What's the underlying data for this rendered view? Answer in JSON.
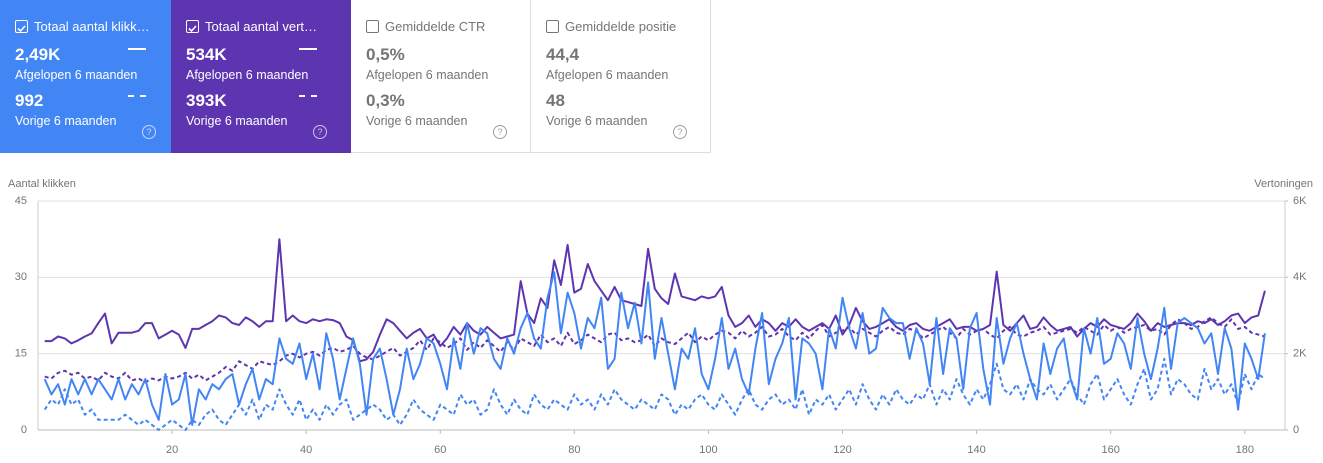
{
  "cards": [
    {
      "label": "Totaal aantal klikk…",
      "checked": true,
      "theme": "#4285f4",
      "current": {
        "value": "2,49K",
        "period": "Afgelopen 6 maanden"
      },
      "previous": {
        "value": "992",
        "period": "Vorige 6 maanden"
      }
    },
    {
      "label": "Totaal aantal vert…",
      "checked": true,
      "theme": "#5e35b1",
      "current": {
        "value": "534K",
        "period": "Afgelopen 6 maanden"
      },
      "previous": {
        "value": "393K",
        "period": "Vorige 6 maanden"
      }
    },
    {
      "label": "Gemiddelde CTR",
      "checked": false,
      "current": {
        "value": "0,5%",
        "period": "Afgelopen 6 maanden"
      },
      "previous": {
        "value": "0,3%",
        "period": "Vorige 6 maanden"
      }
    },
    {
      "label": "Gemiddelde positie",
      "checked": false,
      "current": {
        "value": "44,4",
        "period": "Afgelopen 6 maanden"
      },
      "previous": {
        "value": "48",
        "period": "Vorige 6 maanden"
      }
    }
  ],
  "chart_data": {
    "type": "line",
    "ylabel": "Aantal klikken",
    "y2label": "Vertoningen",
    "grid": true,
    "xlim": [
      0,
      186
    ],
    "xticks": [
      20,
      40,
      60,
      80,
      100,
      120,
      140,
      160,
      180
    ],
    "ylim": [
      0,
      45
    ],
    "yticks": [
      0,
      15,
      30,
      45
    ],
    "y2lim": [
      0,
      6000
    ],
    "y2ticks": [
      0,
      {
        "value": 2000,
        "label": "2K"
      },
      {
        "value": 4000,
        "label": "4K"
      },
      {
        "value": 6000,
        "label": "6K"
      }
    ],
    "x": [
      1,
      2,
      3,
      4,
      5,
      6,
      7,
      8,
      9,
      10,
      11,
      12,
      13,
      14,
      15,
      16,
      17,
      18,
      19,
      20,
      21,
      22,
      23,
      24,
      25,
      26,
      27,
      28,
      29,
      30,
      31,
      32,
      33,
      34,
      35,
      36,
      37,
      38,
      39,
      40,
      41,
      42,
      43,
      44,
      45,
      46,
      47,
      48,
      49,
      50,
      51,
      52,
      53,
      54,
      55,
      56,
      57,
      58,
      59,
      60,
      61,
      62,
      63,
      64,
      65,
      66,
      67,
      68,
      69,
      70,
      71,
      72,
      73,
      74,
      75,
      76,
      77,
      78,
      79,
      80,
      81,
      82,
      83,
      84,
      85,
      86,
      87,
      88,
      89,
      90,
      91,
      92,
      93,
      94,
      95,
      96,
      97,
      98,
      99,
      100,
      101,
      102,
      103,
      104,
      105,
      106,
      107,
      108,
      109,
      110,
      111,
      112,
      113,
      114,
      115,
      116,
      117,
      118,
      119,
      120,
      121,
      122,
      123,
      124,
      125,
      126,
      127,
      128,
      129,
      130,
      131,
      132,
      133,
      134,
      135,
      136,
      137,
      138,
      139,
      140,
      141,
      142,
      143,
      144,
      145,
      146,
      147,
      148,
      149,
      150,
      151,
      152,
      153,
      154,
      155,
      156,
      157,
      158,
      159,
      160,
      161,
      162,
      163,
      164,
      165,
      166,
      167,
      168,
      169,
      170,
      171,
      172,
      173,
      174,
      175,
      176,
      177,
      178,
      179,
      180,
      181,
      182,
      183
    ],
    "series": [
      {
        "color": "#5e35b1",
        "axis": "y2",
        "dashed": false,
        "values": [
          2330,
          2330,
          2450,
          2400,
          2270,
          2350,
          2450,
          2530,
          2800,
          3050,
          2270,
          2550,
          2550,
          2550,
          2600,
          2800,
          2800,
          2400,
          2500,
          2600,
          2500,
          2150,
          2650,
          2650,
          2750,
          2850,
          3000,
          2950,
          2800,
          2750,
          2950,
          2850,
          2700,
          2850,
          2850,
          5000,
          2850,
          3000,
          2850,
          2800,
          2900,
          2850,
          2900,
          2880,
          2800,
          2450,
          2350,
          1800,
          1850,
          2050,
          2500,
          2900,
          2800,
          2600,
          2400,
          2550,
          2650,
          2400,
          2500,
          2200,
          2400,
          2700,
          2500,
          2800,
          2600,
          2500,
          2700,
          2550,
          2400,
          2450,
          2500,
          3900,
          3050,
          2800,
          3450,
          3200,
          4450,
          3800,
          4850,
          3600,
          3700,
          4350,
          3900,
          3650,
          3400,
          3750,
          3400,
          3350,
          3300,
          3250,
          4750,
          3700,
          3450,
          3300,
          4100,
          3500,
          3450,
          3400,
          3500,
          3450,
          3500,
          3750,
          3000,
          2700,
          2800,
          3000,
          2700,
          2900,
          2800,
          2600,
          2800,
          2700,
          2900,
          2700,
          2600,
          2700,
          2800,
          2650,
          3000,
          2500,
          2750,
          3200,
          2850,
          2650,
          2700,
          2800,
          2900,
          2700,
          2600,
          2750,
          2800,
          2650,
          2600,
          2700,
          2800,
          2900,
          2650,
          2700,
          2700,
          2600,
          2650,
          2750,
          4150,
          2750,
          2600,
          2800,
          3000,
          2650,
          2700,
          2950,
          2750,
          2600,
          2650,
          2700,
          2450,
          2650,
          2800,
          2700,
          2900,
          2750,
          2700,
          2650,
          2800,
          3050,
          2850,
          2600,
          2800,
          2700,
          2750,
          2800,
          2800,
          2750,
          2850,
          2800,
          2900,
          2750,
          2850,
          3000,
          3050,
          2800,
          2950,
          3000,
          3650
        ]
      },
      {
        "color": "#5e35b1",
        "axis": "y2",
        "dashed": true,
        "values": [
          1400,
          1350,
          1500,
          1550,
          1450,
          1500,
          1350,
          1400,
          1300,
          1500,
          1400,
          1350,
          1500,
          1300,
          1350,
          1250,
          1350,
          1300,
          1400,
          1350,
          1400,
          1500,
          1350,
          1450,
          1300,
          1400,
          1500,
          1650,
          1550,
          1800,
          1700,
          1600,
          1800,
          1750,
          1700,
          1800,
          1950,
          2000,
          1900,
          2000,
          2050,
          1950,
          2100,
          2150,
          2050,
          2100,
          2200,
          2000,
          1900,
          1850,
          1950,
          2050,
          2150,
          1950,
          2050,
          2150,
          2350,
          2100,
          2400,
          2300,
          2150,
          2250,
          2400,
          2100,
          2300,
          2150,
          2350,
          2200,
          2050,
          2300,
          2100,
          2400,
          2300,
          2200,
          2500,
          2300,
          2400,
          2200,
          2550,
          2250,
          2350,
          2500,
          2400,
          2300,
          2500,
          2550,
          2350,
          2400,
          2300,
          2350,
          2500,
          2200,
          2400,
          2300,
          2250,
          2400,
          2550,
          2300,
          2450,
          2350,
          2500,
          2600,
          2550,
          2400,
          2600,
          2450,
          2550,
          2700,
          2450,
          2500,
          2650,
          2450,
          2350,
          2550,
          2400,
          2600,
          2750,
          2450,
          2550,
          2600,
          2700,
          2500,
          2650,
          2550,
          2450,
          2600,
          2700,
          2550,
          2500,
          2650,
          2600,
          2400,
          2500,
          2600,
          2700,
          2550,
          2400,
          2650,
          2500,
          2600,
          2650,
          2500,
          2400,
          2600,
          2700,
          2500,
          2450,
          2550,
          2600,
          2700,
          2500,
          2550,
          2600,
          2650,
          2550,
          2700,
          2600,
          2500,
          2750,
          2600,
          2700,
          2550,
          2650,
          2700,
          2750,
          2600,
          2650,
          2500,
          2750,
          2900,
          2800,
          2650,
          2700,
          2850,
          2950,
          2800,
          2700,
          2900,
          2650,
          2700,
          2550,
          2500,
          2450
        ]
      },
      {
        "color": "#4285f4",
        "axis": "y",
        "dashed": false,
        "values": [
          10,
          7,
          9,
          5,
          10,
          7,
          10,
          7,
          10,
          8,
          6,
          10,
          6,
          9,
          7,
          10,
          5,
          2,
          11,
          5,
          6,
          11,
          1,
          8,
          6,
          9,
          8,
          10,
          11,
          5,
          9,
          12,
          6,
          10,
          9,
          18,
          14,
          13,
          17,
          10,
          15,
          8,
          19,
          14,
          6,
          12,
          18,
          13,
          3,
          14,
          16,
          10,
          3,
          8,
          16,
          10,
          13,
          18,
          17,
          13,
          8,
          18,
          12,
          21,
          15,
          20,
          19,
          14,
          12,
          18,
          15,
          20,
          23,
          18,
          16,
          26,
          31,
          19,
          27,
          23,
          16,
          22,
          20,
          26,
          12,
          14,
          27,
          20,
          25,
          17,
          29,
          14,
          22,
          15,
          8,
          16,
          14,
          20,
          11,
          8,
          14,
          22,
          12,
          16,
          10,
          7,
          16,
          23,
          9,
          14,
          17,
          22,
          6,
          18,
          17,
          15,
          8,
          20,
          16,
          26,
          20,
          16,
          23,
          15,
          16,
          24,
          22,
          21,
          21,
          14,
          20,
          17,
          9,
          22,
          11,
          20,
          18,
          8,
          20,
          23,
          12,
          5,
          22,
          13,
          18,
          21,
          15,
          10,
          6,
          17,
          11,
          16,
          18,
          10,
          6,
          20,
          15,
          22,
          13,
          14,
          19,
          17,
          12,
          22,
          15,
          10,
          16,
          24,
          12,
          21,
          22,
          21,
          20,
          17,
          19,
          11,
          20,
          16,
          4,
          17,
          14,
          10,
          19
        ]
      },
      {
        "color": "#4285f4",
        "axis": "y",
        "dashed": true,
        "values": [
          4,
          6,
          5,
          8,
          5,
          6,
          3,
          4,
          2,
          2,
          2,
          2,
          3,
          2,
          1,
          2,
          1,
          0,
          1,
          2,
          1,
          0,
          2,
          1,
          3,
          4,
          2,
          1,
          3,
          5,
          3,
          6,
          2,
          5,
          4,
          8,
          5,
          3,
          6,
          2,
          4,
          2,
          5,
          3,
          5,
          6,
          2,
          3,
          4,
          5,
          4,
          2,
          3,
          1,
          3,
          6,
          4,
          3,
          2,
          5,
          4,
          3,
          7,
          5,
          6,
          3,
          4,
          8,
          5,
          3,
          6,
          4,
          3,
          7,
          5,
          4,
          6,
          5,
          4,
          7,
          5,
          6,
          4,
          7,
          5,
          8,
          6,
          5,
          4,
          6,
          5,
          4,
          7,
          6,
          3,
          5,
          4,
          6,
          7,
          5,
          4,
          7,
          5,
          3,
          6,
          8,
          5,
          4,
          6,
          7,
          5,
          6,
          4,
          8,
          3,
          6,
          5,
          7,
          4,
          6,
          8,
          5,
          9,
          6,
          4,
          7,
          5,
          8,
          6,
          5,
          7,
          6,
          9,
          5,
          8,
          6,
          10,
          7,
          5,
          8,
          6,
          9,
          13,
          8,
          7,
          9,
          6,
          10,
          8,
          7,
          9,
          6,
          8,
          10,
          7,
          5,
          9,
          11,
          6,
          8,
          10,
          7,
          5,
          9,
          12,
          6,
          8,
          14,
          7,
          10,
          9,
          7,
          6,
          12,
          8,
          10,
          7,
          9,
          5,
          11,
          8,
          11,
          10
        ]
      }
    ]
  }
}
